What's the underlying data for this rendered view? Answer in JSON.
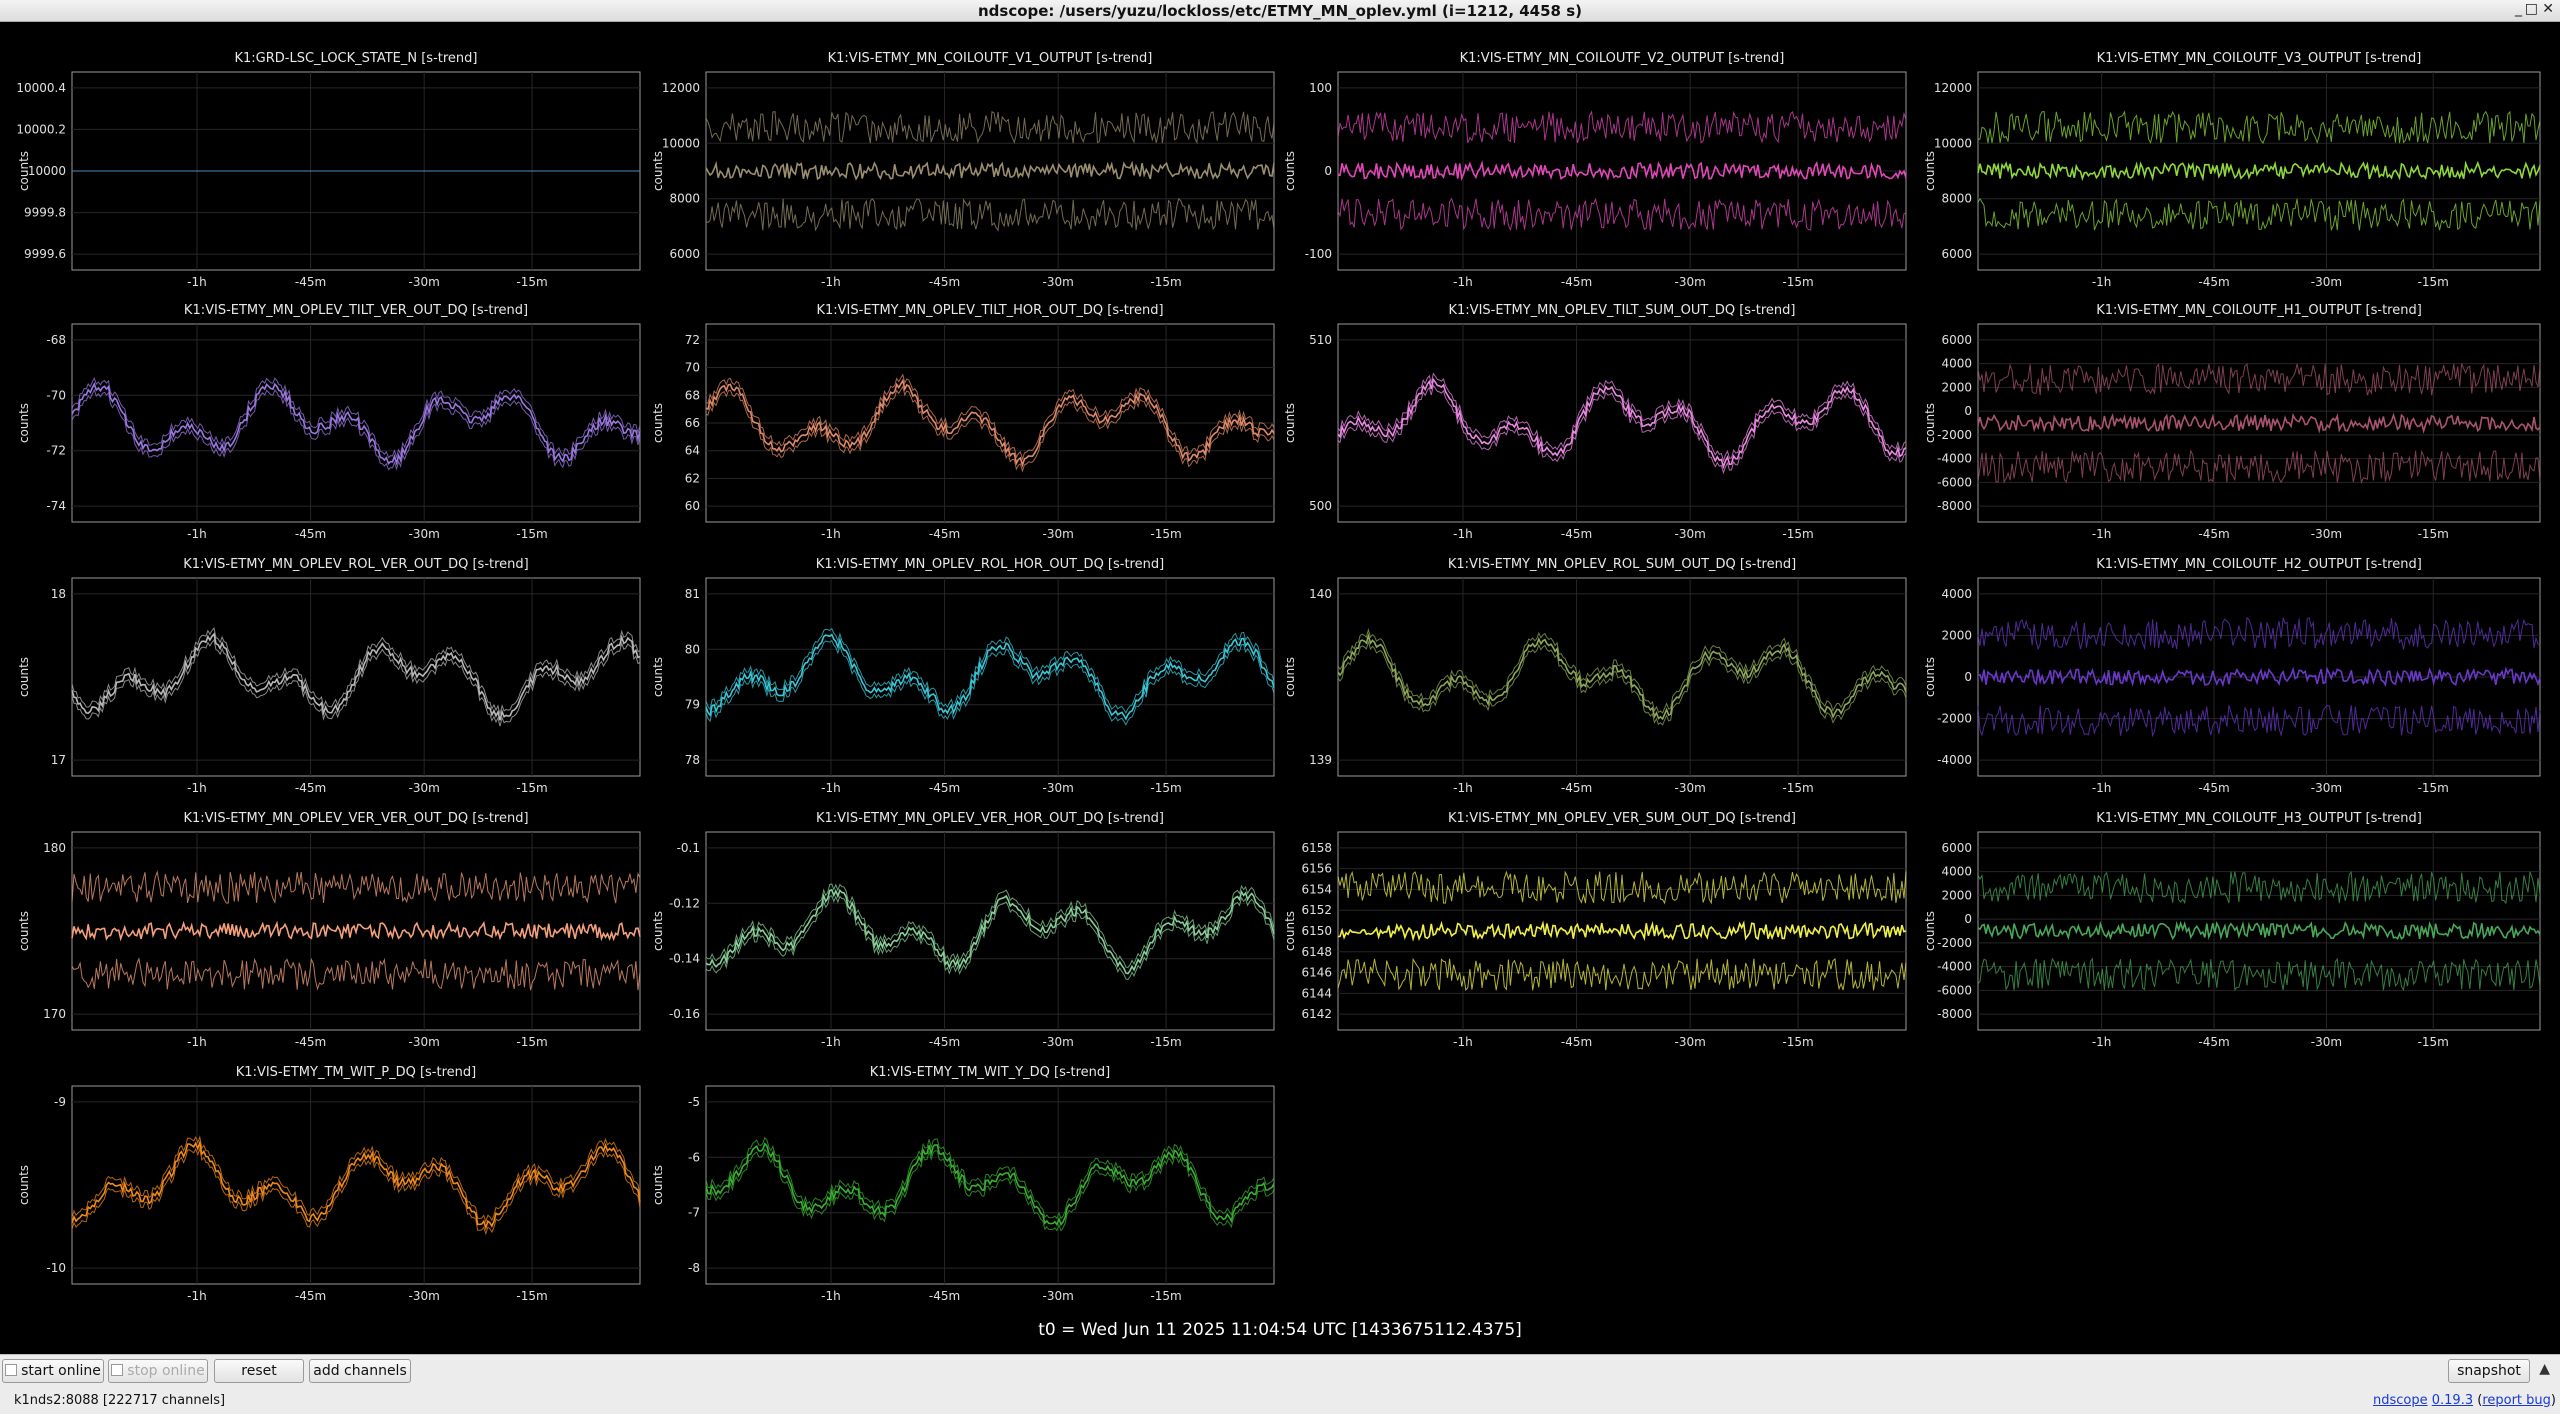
{
  "window": {
    "title": "ndscope: /users/yuzu/lockloss/etc/ETMY_MN_oplev.yml (i=1212, 4458 s)",
    "controls": [
      "_",
      "□",
      "✕"
    ]
  },
  "xticks": [
    "-1h",
    "-45m",
    "-30m",
    "-15m"
  ],
  "ylabel": "counts",
  "plots": [
    {
      "title": "K1:GRD-LSC_LOCK_STATE_N [s-trend]",
      "color": "#4a8cc4",
      "yticks": [
        "10000.4",
        "10000.2",
        "10000",
        "9999.8",
        "9999.6"
      ]
    },
    {
      "title": "K1:VIS-ETMY_MN_COILOUTF_V1_OUTPUT [s-trend]",
      "color": "#9a8e6e",
      "yticks": [
        "12000",
        "10000",
        "8000",
        "6000"
      ]
    },
    {
      "title": "K1:VIS-ETMY_MN_COILOUTF_V2_OUTPUT [s-trend]",
      "color": "#e048b8",
      "yticks": [
        "100",
        "0",
        "-100"
      ]
    },
    {
      "title": "K1:VIS-ETMY_MN_COILOUTF_V3_OUTPUT [s-trend]",
      "color": "#8ed83a",
      "yticks": [
        "12000",
        "10000",
        "8000",
        "6000"
      ]
    },
    {
      "title": "K1:VIS-ETMY_MN_OPLEV_TILT_VER_OUT_DQ [s-trend]",
      "color": "#9b78e0",
      "yticks": [
        "-68",
        "-70",
        "-72",
        "-74"
      ]
    },
    {
      "title": "K1:VIS-ETMY_MN_OPLEV_TILT_HOR_OUT_DQ [s-trend]",
      "color": "#e08a68",
      "yticks": [
        "72",
        "70",
        "68",
        "66",
        "64",
        "62",
        "60"
      ]
    },
    {
      "title": "K1:VIS-ETMY_MN_OPLEV_TILT_SUM_OUT_DQ [s-trend]",
      "color": "#ec88e4",
      "yticks": [
        "510",
        "500"
      ]
    },
    {
      "title": "K1:VIS-ETMY_MN_COILOUTF_H1_OUTPUT [s-trend]",
      "color": "#a85470",
      "yticks": [
        "6000",
        "4000",
        "2000",
        "0",
        "-2000",
        "-4000",
        "-6000",
        "-8000"
      ]
    },
    {
      "title": "K1:VIS-ETMY_MN_OPLEV_ROL_VER_OUT_DQ [s-trend]",
      "color": "#b8b8b8",
      "yticks": [
        "18",
        "17"
      ]
    },
    {
      "title": "K1:VIS-ETMY_MN_OPLEV_ROL_HOR_OUT_DQ [s-trend]",
      "color": "#38c8d8",
      "yticks": [
        "81",
        "80",
        "79",
        "78"
      ]
    },
    {
      "title": "K1:VIS-ETMY_MN_OPLEV_ROL_SUM_OUT_DQ [s-trend]",
      "color": "#8ea858",
      "yticks": [
        "140",
        "139"
      ]
    },
    {
      "title": "K1:VIS-ETMY_MN_COILOUTF_H2_OUTPUT [s-trend]",
      "color": "#6a38c8",
      "yticks": [
        "4000",
        "2000",
        "0",
        "-2000",
        "-4000"
      ]
    },
    {
      "title": "K1:VIS-ETMY_MN_OPLEV_VER_VER_OUT_DQ [s-trend]",
      "color": "#f4a07a",
      "yticks": [
        "180",
        "170"
      ]
    },
    {
      "title": "K1:VIS-ETMY_MN_OPLEV_VER_HOR_OUT_DQ [s-trend]",
      "color": "#88d09a",
      "yticks": [
        "-0.1",
        "-0.12",
        "-0.14",
        "-0.16"
      ]
    },
    {
      "title": "K1:VIS-ETMY_MN_OPLEV_VER_SUM_OUT_DQ [s-trend]",
      "color": "#f0f048",
      "yticks": [
        "6158",
        "6156",
        "6154",
        "6152",
        "6150",
        "6148",
        "6146",
        "6144",
        "6142"
      ]
    },
    {
      "title": "K1:VIS-ETMY_MN_COILOUTF_H3_OUTPUT [s-trend]",
      "color": "#48a858",
      "yticks": [
        "6000",
        "4000",
        "2000",
        "0",
        "-2000",
        "-4000",
        "-6000",
        "-8000"
      ]
    },
    {
      "title": "K1:VIS-ETMY_TM_WIT_P_DQ [s-trend]",
      "color": "#f08a1a",
      "yticks": [
        "-9",
        "-10"
      ]
    },
    {
      "title": "K1:VIS-ETMY_TM_WIT_Y_DQ [s-trend]",
      "color": "#38b030",
      "yticks": [
        "-5",
        "-6",
        "-7",
        "-8"
      ]
    }
  ],
  "t0": "t0 = Wed Jun 11 2025 11:04:54 UTC [1433675112.4375]",
  "toolbar": {
    "start_online": "start online",
    "stop_online": "stop online",
    "reset": "reset",
    "add_channels": "add channels",
    "snapshot": "snapshot",
    "expand_icon": "▲"
  },
  "status": {
    "server": "k1nds2:8088  [222717 channels]",
    "app_link": "ndscope",
    "version_link": "0.19.3",
    "report_link": "report bug"
  }
}
